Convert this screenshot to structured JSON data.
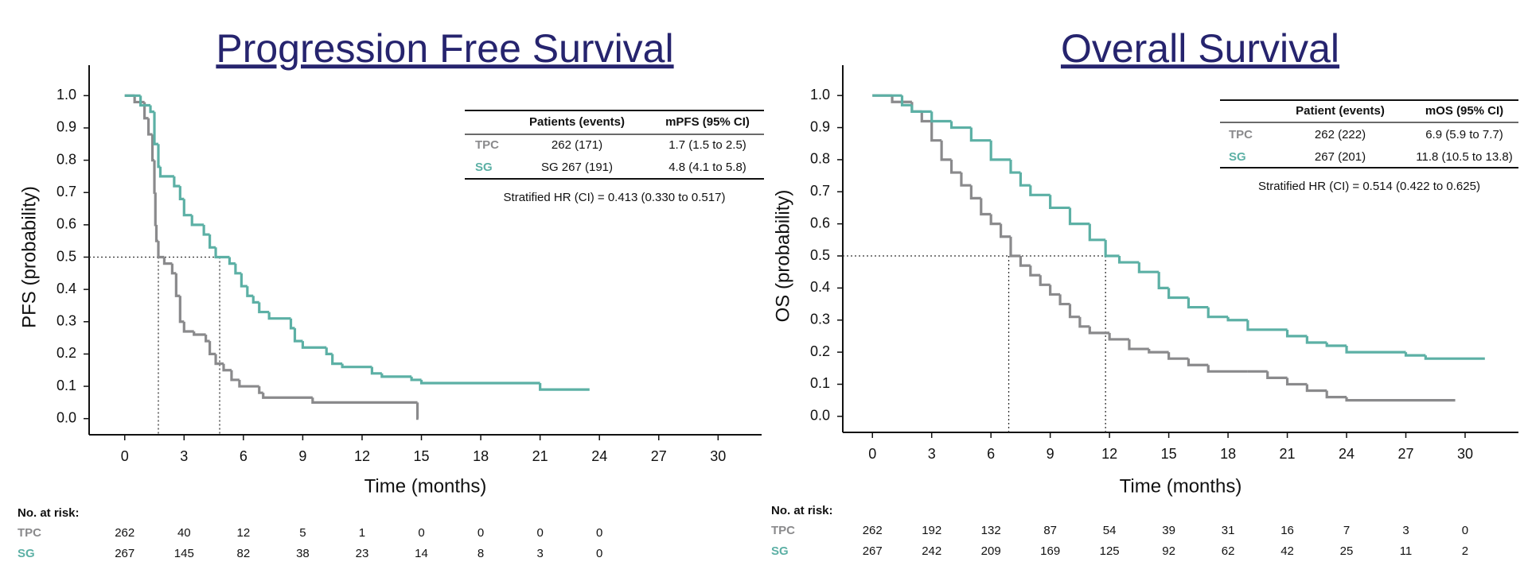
{
  "chart_data": [
    {
      "type": "step",
      "title": "Progression Free Survival",
      "x_label": "Time (months)",
      "y_label": "PFS (probability)",
      "xlim": [
        -1.8,
        32.2
      ],
      "ylim": [
        -0.05,
        1.05
      ],
      "xticks": [
        0,
        3,
        6,
        9,
        12,
        15,
        18,
        21,
        24,
        27,
        30
      ],
      "yticks": [
        {
          "value": 1,
          "label": "1.0"
        },
        0.9,
        0.8,
        0.7,
        0.6,
        0.5,
        0.4,
        0.3,
        0.2,
        0.1,
        {
          "value": 0,
          "label": "0.0"
        }
      ],
      "series": [
        {
          "name": "TPC",
          "color": "#8a8a8c",
          "x": [
            0,
            0.5,
            1.0,
            1.2,
            1.4,
            1.5,
            1.55,
            1.6,
            1.7,
            2.0,
            2.4,
            2.6,
            2.8,
            3.0,
            3.5,
            4.1,
            4.3,
            4.6,
            5.0,
            5.4,
            5.8,
            6.8,
            7.0,
            9.5,
            14.8,
            14.85
          ],
          "values": [
            1.0,
            0.98,
            0.93,
            0.88,
            0.8,
            0.7,
            0.6,
            0.55,
            0.5,
            0.48,
            0.45,
            0.38,
            0.3,
            0.27,
            0.26,
            0.24,
            0.2,
            0.17,
            0.15,
            0.12,
            0.1,
            0.08,
            0.065,
            0.05,
            0.0,
            0.0
          ]
        },
        {
          "name": "SG",
          "color": "#5cb0a5",
          "x": [
            0,
            0.8,
            1.3,
            1.5,
            1.7,
            1.8,
            2.5,
            2.8,
            3.0,
            3.4,
            4.0,
            4.3,
            4.6,
            5.3,
            5.6,
            5.9,
            6.2,
            6.5,
            6.8,
            7.3,
            8.4,
            8.6,
            9.0,
            10.2,
            10.5,
            11.0,
            12.5,
            13.0,
            14.5,
            15.0,
            21.0,
            23.5
          ],
          "values": [
            1.0,
            0.97,
            0.95,
            0.85,
            0.78,
            0.75,
            0.72,
            0.68,
            0.63,
            0.6,
            0.57,
            0.53,
            0.5,
            0.48,
            0.45,
            0.41,
            0.38,
            0.36,
            0.33,
            0.31,
            0.28,
            0.24,
            0.22,
            0.2,
            0.17,
            0.16,
            0.14,
            0.13,
            0.12,
            0.11,
            0.09,
            0.09
          ]
        }
      ],
      "reference_y": 0.5,
      "median_x": [
        1.7,
        4.8
      ],
      "table": {
        "columns": [
          "Patients (events)",
          "mPFS (95% CI)"
        ],
        "rows": [
          [
            "262 (171)",
            "1.7 (1.5 to 2.5)"
          ],
          [
            "SG 267 (191)",
            "4.8 (4.1 to 5.8)"
          ]
        ],
        "note": "Stratified HR (CI) = 0.413 (0.330 to 0.517)"
      },
      "at_risk": {
        "label": "No. at risk:",
        "rows": [
          [
            262,
            40,
            12,
            5,
            1,
            0,
            0,
            0,
            0
          ],
          [
            267,
            145,
            82,
            38,
            23,
            14,
            8,
            3,
            0
          ]
        ]
      }
    },
    {
      "type": "step",
      "title": "Overall Survival",
      "x_label": "Time (months)",
      "y_label": "OS (probability)",
      "xlim": [
        -1.5,
        32.7
      ],
      "ylim": [
        -0.05,
        1.05
      ],
      "xticks": [
        0,
        3,
        6,
        9,
        12,
        15,
        18,
        21,
        24,
        27,
        30
      ],
      "yticks": [
        {
          "value": 1,
          "label": "1.0"
        },
        0.9,
        0.8,
        0.7,
        0.6,
        0.5,
        0.4,
        0.3,
        0.2,
        0.1,
        {
          "value": 0,
          "label": "0.0"
        }
      ],
      "series": [
        {
          "name": "TPC",
          "color": "#8a8a8c",
          "x": [
            0,
            1,
            2,
            2.5,
            3,
            3.5,
            4,
            4.5,
            5,
            5.5,
            6,
            6.5,
            7,
            7.5,
            8,
            8.5,
            9,
            9.5,
            10,
            10.5,
            11,
            12,
            13,
            14,
            15,
            16,
            17,
            19,
            20,
            21,
            22,
            23,
            24,
            29.5
          ],
          "values": [
            1.0,
            0.98,
            0.95,
            0.92,
            0.86,
            0.8,
            0.76,
            0.72,
            0.68,
            0.63,
            0.6,
            0.56,
            0.5,
            0.47,
            0.44,
            0.41,
            0.38,
            0.35,
            0.31,
            0.28,
            0.26,
            0.24,
            0.21,
            0.2,
            0.18,
            0.16,
            0.14,
            0.14,
            0.12,
            0.1,
            0.08,
            0.06,
            0.05,
            0.05
          ]
        },
        {
          "name": "SG",
          "color": "#5cb0a5",
          "x": [
            0,
            1.5,
            2,
            3,
            4,
            5,
            6,
            7,
            7.5,
            8,
            9,
            10,
            11,
            11.8,
            12.5,
            13.5,
            14.5,
            15,
            16,
            17,
            18,
            19,
            21,
            22,
            23,
            24,
            27,
            28,
            31
          ],
          "values": [
            1.0,
            0.97,
            0.95,
            0.92,
            0.9,
            0.86,
            0.8,
            0.76,
            0.72,
            0.69,
            0.65,
            0.6,
            0.55,
            0.5,
            0.48,
            0.45,
            0.4,
            0.37,
            0.34,
            0.31,
            0.3,
            0.27,
            0.25,
            0.23,
            0.22,
            0.2,
            0.19,
            0.18,
            0.18
          ]
        }
      ],
      "reference_y": 0.5,
      "median_x": [
        6.9,
        11.8
      ],
      "table": {
        "columns": [
          "Patient (events)",
          "mOS (95% CI)"
        ],
        "rows": [
          [
            "262 (222)",
            "6.9 (5.9 to 7.7)"
          ],
          [
            "267 (201)",
            "11.8 (10.5 to 13.8)"
          ]
        ],
        "note": "Stratified HR (CI) = 0.514 (0.422 to 0.625)"
      },
      "at_risk": {
        "label": "No. at risk:",
        "rows": [
          [
            262,
            192,
            132,
            87,
            54,
            39,
            31,
            16,
            7,
            3,
            0
          ],
          [
            267,
            242,
            209,
            169,
            125,
            92,
            62,
            42,
            25,
            11,
            2
          ]
        ]
      }
    }
  ]
}
